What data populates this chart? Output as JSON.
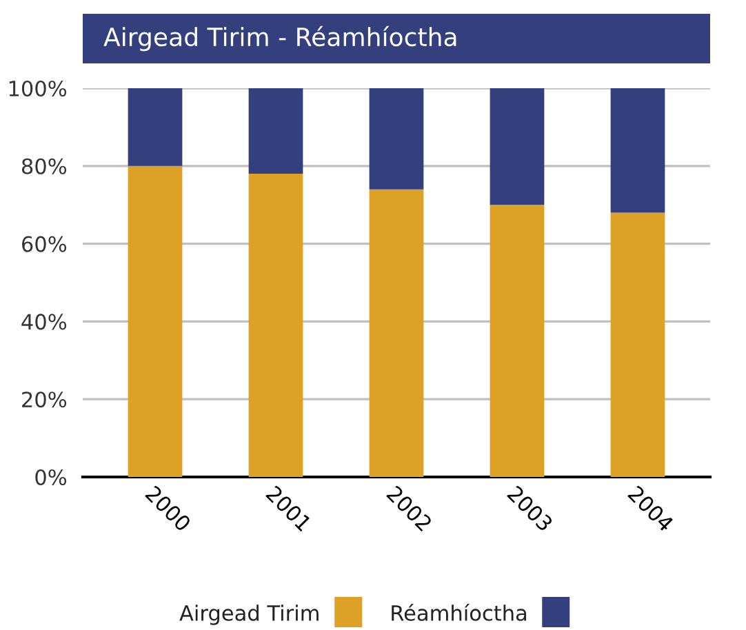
{
  "chart_data": {
    "type": "bar",
    "title": "Airgead Tirim - Réamhíoctha",
    "categories": [
      "2000",
      "2001",
      "2002",
      "2003",
      "2004"
    ],
    "stacked": true,
    "series": [
      {
        "name": "Airgead Tirim",
        "color": "#dca125",
        "values": [
          80,
          78,
          74,
          70,
          68
        ]
      },
      {
        "name": "Réamhíoctha",
        "color": "#343f7e",
        "values": [
          20,
          22,
          26,
          30,
          32
        ]
      }
    ],
    "ylim": [
      0,
      100
    ],
    "yticks": [
      {
        "value": 0,
        "label": "0%"
      },
      {
        "value": 20,
        "label": "20%"
      },
      {
        "value": 40,
        "label": "40%"
      },
      {
        "value": 60,
        "label": "60%"
      },
      {
        "value": 80,
        "label": "80%"
      },
      {
        "value": 100,
        "label": "100%"
      }
    ],
    "grid": "y",
    "legend": "bottom"
  }
}
